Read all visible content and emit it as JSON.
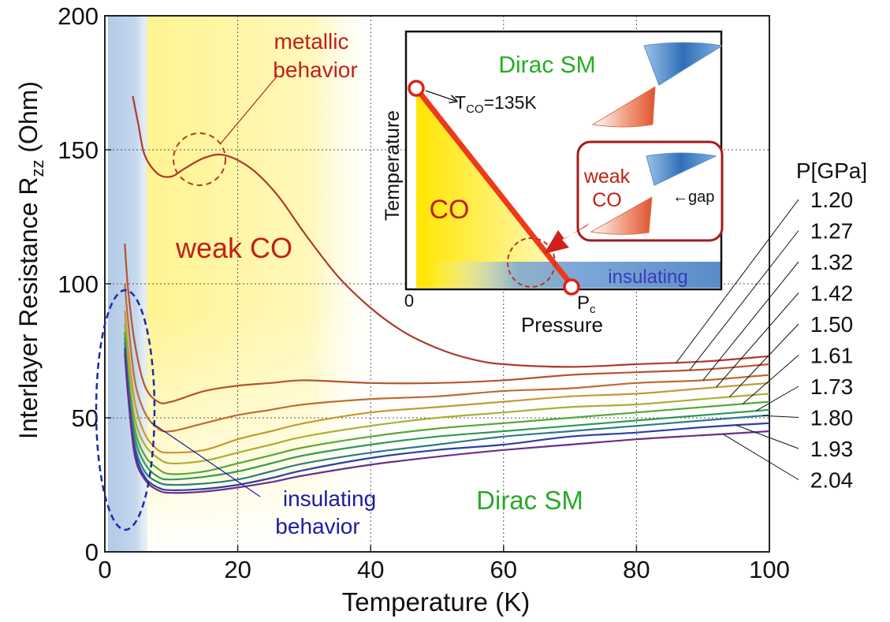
{
  "chart_data": {
    "type": "line",
    "xlabel": "Temperature (K)",
    "ylabel_main": "Interlayer Resistance R",
    "ylabel_sub": "zz",
    "ylabel_unit": " (Ohm)",
    "xlim": [
      0,
      100
    ],
    "ylim": [
      0,
      200
    ],
    "grid": true,
    "x_ticks": [
      "0",
      "20",
      "40",
      "60",
      "80",
      "100"
    ],
    "y_ticks": [
      "0",
      "50",
      "100",
      "150",
      "200"
    ],
    "legend_title": "P[GPa]",
    "series": [
      {
        "name": "1.20",
        "color": "#b0392b",
        "points": [
          [
            4.2,
            170
          ],
          [
            5,
            160
          ],
          [
            6,
            148
          ],
          [
            8,
            141
          ],
          [
            10,
            140
          ],
          [
            12,
            143
          ],
          [
            15,
            147
          ],
          [
            18,
            148
          ],
          [
            22,
            143
          ],
          [
            26,
            133
          ],
          [
            30,
            119
          ],
          [
            35,
            103
          ],
          [
            40,
            91
          ],
          [
            45,
            82
          ],
          [
            50,
            76
          ],
          [
            55,
            72
          ],
          [
            60,
            70
          ],
          [
            70,
            69
          ],
          [
            80,
            70
          ],
          [
            90,
            71
          ],
          [
            100,
            73
          ]
        ]
      },
      {
        "name": "1.27",
        "color": "#b8532e",
        "points": [
          [
            3,
            115
          ],
          [
            3.5,
            98
          ],
          [
            4.5,
            78
          ],
          [
            6,
            62
          ],
          [
            8,
            56
          ],
          [
            10,
            56
          ],
          [
            15,
            60
          ],
          [
            20,
            62
          ],
          [
            25,
            63
          ],
          [
            30,
            64
          ],
          [
            40,
            63
          ],
          [
            50,
            63
          ],
          [
            60,
            64
          ],
          [
            70,
            66
          ],
          [
            80,
            67
          ],
          [
            90,
            68
          ],
          [
            100,
            70
          ]
        ]
      },
      {
        "name": "1.32",
        "color": "#c06a2f",
        "points": [
          [
            3,
            100
          ],
          [
            3.5,
            86
          ],
          [
            4.5,
            64
          ],
          [
            6,
            52
          ],
          [
            8,
            46
          ],
          [
            10,
            45
          ],
          [
            15,
            48
          ],
          [
            20,
            51
          ],
          [
            25,
            53
          ],
          [
            30,
            55
          ],
          [
            40,
            57
          ],
          [
            50,
            58
          ],
          [
            60,
            60
          ],
          [
            70,
            61
          ],
          [
            80,
            63
          ],
          [
            90,
            64
          ],
          [
            100,
            66
          ]
        ]
      },
      {
        "name": "1.42",
        "color": "#c49a30",
        "points": [
          [
            3,
            90
          ],
          [
            3.5,
            76
          ],
          [
            4.5,
            56
          ],
          [
            6,
            44
          ],
          [
            8,
            38
          ],
          [
            10,
            37
          ],
          [
            15,
            38
          ],
          [
            20,
            42
          ],
          [
            25,
            45
          ],
          [
            30,
            48
          ],
          [
            40,
            52
          ],
          [
            50,
            54
          ],
          [
            60,
            56
          ],
          [
            70,
            58
          ],
          [
            80,
            59
          ],
          [
            90,
            61
          ],
          [
            100,
            63
          ]
        ]
      },
      {
        "name": "1.50",
        "color": "#a8b030",
        "points": [
          [
            3,
            85
          ],
          [
            3.5,
            70
          ],
          [
            4.5,
            50
          ],
          [
            6,
            40
          ],
          [
            8,
            35
          ],
          [
            10,
            33
          ],
          [
            15,
            34
          ],
          [
            20,
            37
          ],
          [
            25,
            40
          ],
          [
            30,
            43
          ],
          [
            40,
            47
          ],
          [
            50,
            50
          ],
          [
            60,
            52
          ],
          [
            70,
            54
          ],
          [
            80,
            55
          ],
          [
            90,
            57
          ],
          [
            100,
            59
          ]
        ]
      },
      {
        "name": "1.61",
        "color": "#56a838",
        "points": [
          [
            3,
            82
          ],
          [
            3.5,
            66
          ],
          [
            4.5,
            46
          ],
          [
            6,
            36
          ],
          [
            8,
            31
          ],
          [
            10,
            29
          ],
          [
            15,
            30
          ],
          [
            20,
            33
          ],
          [
            25,
            36
          ],
          [
            30,
            39
          ],
          [
            40,
            43
          ],
          [
            50,
            46
          ],
          [
            60,
            48
          ],
          [
            70,
            50
          ],
          [
            80,
            52
          ],
          [
            90,
            54
          ],
          [
            100,
            56
          ]
        ]
      },
      {
        "name": "1.73",
        "color": "#2e9a55",
        "points": [
          [
            3,
            80
          ],
          [
            3.5,
            64
          ],
          [
            4.5,
            43
          ],
          [
            6,
            33
          ],
          [
            8,
            28
          ],
          [
            10,
            27
          ],
          [
            15,
            28
          ],
          [
            20,
            30
          ],
          [
            25,
            33
          ],
          [
            30,
            36
          ],
          [
            40,
            40
          ],
          [
            50,
            43
          ],
          [
            60,
            45
          ],
          [
            70,
            47
          ],
          [
            80,
            49
          ],
          [
            90,
            51
          ],
          [
            100,
            53
          ]
        ]
      },
      {
        "name": "1.80",
        "color": "#2c7a8a",
        "points": [
          [
            3,
            78
          ],
          [
            3.5,
            62
          ],
          [
            4.5,
            40
          ],
          [
            6,
            30
          ],
          [
            8,
            26
          ],
          [
            10,
            25
          ],
          [
            15,
            25.5
          ],
          [
            20,
            27
          ],
          [
            25,
            30
          ],
          [
            30,
            33
          ],
          [
            40,
            37
          ],
          [
            50,
            40
          ],
          [
            60,
            43
          ],
          [
            70,
            45
          ],
          [
            80,
            47
          ],
          [
            90,
            49
          ],
          [
            100,
            51
          ]
        ]
      },
      {
        "name": "1.93",
        "color": "#2a3fa6",
        "points": [
          [
            3,
            76
          ],
          [
            3.5,
            60
          ],
          [
            4.5,
            38
          ],
          [
            6,
            28
          ],
          [
            8,
            24
          ],
          [
            10,
            23
          ],
          [
            15,
            23.5
          ],
          [
            20,
            25
          ],
          [
            25,
            27.5
          ],
          [
            30,
            30.5
          ],
          [
            40,
            35
          ],
          [
            50,
            38
          ],
          [
            60,
            40
          ],
          [
            70,
            43
          ],
          [
            80,
            44.5
          ],
          [
            90,
            46.5
          ],
          [
            100,
            48
          ]
        ]
      },
      {
        "name": "2.04",
        "color": "#6a2e8c",
        "points": [
          [
            3,
            74
          ],
          [
            3.5,
            58
          ],
          [
            4.5,
            36
          ],
          [
            6,
            27
          ],
          [
            8,
            23
          ],
          [
            10,
            22
          ],
          [
            15,
            22.5
          ],
          [
            20,
            24
          ],
          [
            25,
            26
          ],
          [
            30,
            28.5
          ],
          [
            40,
            32.5
          ],
          [
            50,
            35.5
          ],
          [
            60,
            38
          ],
          [
            70,
            40
          ],
          [
            80,
            42
          ],
          [
            90,
            43.5
          ],
          [
            100,
            45
          ]
        ]
      }
    ]
  },
  "annotations": {
    "metallic_line1": "metallic",
    "metallic_line2": "behavior",
    "weak_co": "weak CO",
    "insulating_line1": "insulating",
    "insulating_line2": "behavior",
    "dirac_sm": "Dirac SM"
  },
  "inset": {
    "dirac_sm": "Dirac SM",
    "tco_main": "T",
    "tco_sub": "CO",
    "tco_value": "=135K",
    "y_axis_label": "Temperature",
    "x_axis_label": "Pressure",
    "origin_label": "0",
    "pc_main": "P",
    "pc_sub": "c",
    "co_label": "CO",
    "insulating": "insulating",
    "weak_co_line1": "weak",
    "weak_co_line2": "CO",
    "gap": "←gap"
  },
  "colors": {
    "metallic_text": "#c0201a",
    "weak_co_text": "#c0201a",
    "insulating_text": "#1c1ca8",
    "dirac_text": "#2aa82a",
    "inset_dirac_text": "#22b022",
    "inset_phase_line": "#ee3a1a",
    "insulating_band": "#5b8fc9",
    "yellow_band": "#fff5a0"
  }
}
